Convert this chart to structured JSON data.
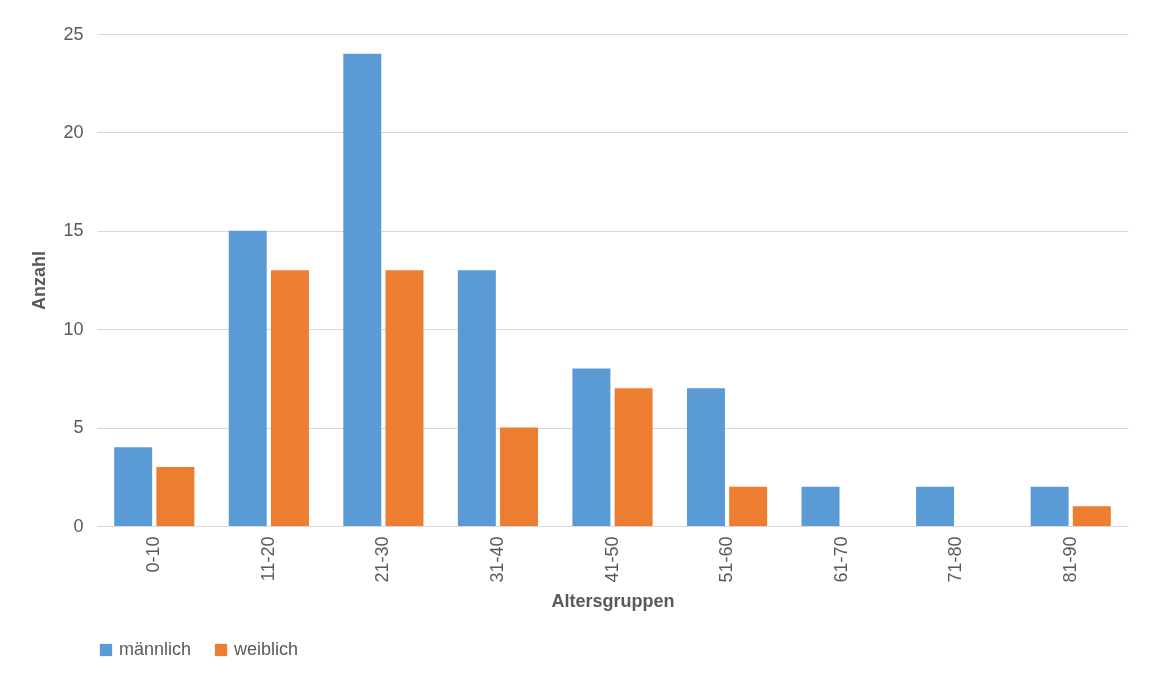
{
  "chart_data": {
    "type": "bar",
    "xlabel": "Altersgruppen",
    "ylabel": "Anzahl",
    "categories": [
      "0-10",
      "11-20",
      "21-30",
      "31-40",
      "41-50",
      "51-60",
      "61-70",
      "71-80",
      "81-90"
    ],
    "series": [
      {
        "name": "männlich",
        "color": "#5b9bd5",
        "values": [
          4,
          15,
          24,
          13,
          8,
          7,
          2,
          2,
          2
        ]
      },
      {
        "name": "weiblich",
        "color": "#ed7d31",
        "values": [
          3,
          13,
          13,
          5,
          7,
          2,
          0,
          0,
          1
        ]
      }
    ],
    "ylim": [
      0,
      25
    ],
    "yticks": [
      0,
      5,
      10,
      15,
      20,
      25
    ],
    "grid": "y",
    "legend": "bottom"
  }
}
